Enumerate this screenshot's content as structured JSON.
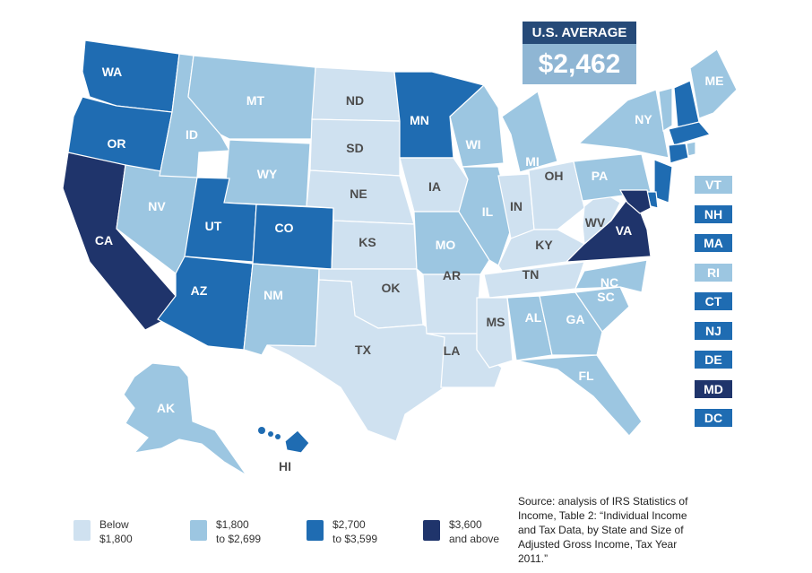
{
  "us_average": {
    "label": "U.S. AVERAGE",
    "value": "$2,462"
  },
  "colors": {
    "below_1800": "#cfe1f0",
    "1800_2699": "#9cc6e1",
    "2700_3599": "#1f6cb2",
    "3600_up": "#1f346b",
    "label_dark": "#4d4d4d",
    "label_light": "#ffffff"
  },
  "legend": [
    {
      "tier": "below_1800",
      "line1": "Below",
      "line2": "$1,800"
    },
    {
      "tier": "1800_2699",
      "line1": "$1,800",
      "line2": "to $2,699"
    },
    {
      "tier": "2700_3599",
      "line1": "$2,700",
      "line2": "to $3,599"
    },
    {
      "tier": "3600_up",
      "line1": "$3,600",
      "line2": "and above"
    }
  ],
  "source": "Source: analysis of IRS Statistics of Income, Table 2: “Individual Income and Tax Data, by State and Size of Adjusted Gross Income, Tax Year 2011.”",
  "side_states": [
    {
      "abbr": "VT",
      "tier": "1800_2699"
    },
    {
      "abbr": "NH",
      "tier": "2700_3599"
    },
    {
      "abbr": "MA",
      "tier": "2700_3599"
    },
    {
      "abbr": "RI",
      "tier": "1800_2699"
    },
    {
      "abbr": "CT",
      "tier": "2700_3599"
    },
    {
      "abbr": "NJ",
      "tier": "2700_3599"
    },
    {
      "abbr": "DE",
      "tier": "2700_3599"
    },
    {
      "abbr": "MD",
      "tier": "3600_up"
    },
    {
      "abbr": "DC",
      "tier": "2700_3599"
    }
  ],
  "states": [
    {
      "abbr": "WA",
      "tier": "2700_3599"
    },
    {
      "abbr": "OR",
      "tier": "2700_3599"
    },
    {
      "abbr": "CA",
      "tier": "3600_up"
    },
    {
      "abbr": "NV",
      "tier": "1800_2699"
    },
    {
      "abbr": "ID",
      "tier": "1800_2699"
    },
    {
      "abbr": "MT",
      "tier": "1800_2699"
    },
    {
      "abbr": "WY",
      "tier": "1800_2699"
    },
    {
      "abbr": "UT",
      "tier": "2700_3599"
    },
    {
      "abbr": "CO",
      "tier": "2700_3599"
    },
    {
      "abbr": "AZ",
      "tier": "2700_3599"
    },
    {
      "abbr": "NM",
      "tier": "1800_2699"
    },
    {
      "abbr": "ND",
      "tier": "below_1800"
    },
    {
      "abbr": "SD",
      "tier": "below_1800"
    },
    {
      "abbr": "NE",
      "tier": "below_1800"
    },
    {
      "abbr": "KS",
      "tier": "below_1800"
    },
    {
      "abbr": "OK",
      "tier": "below_1800"
    },
    {
      "abbr": "TX",
      "tier": "below_1800"
    },
    {
      "abbr": "MN",
      "tier": "2700_3599"
    },
    {
      "abbr": "IA",
      "tier": "below_1800"
    },
    {
      "abbr": "MO",
      "tier": "1800_2699"
    },
    {
      "abbr": "AR",
      "tier": "below_1800"
    },
    {
      "abbr": "LA",
      "tier": "below_1800"
    },
    {
      "abbr": "WI",
      "tier": "1800_2699"
    },
    {
      "abbr": "IL",
      "tier": "1800_2699"
    },
    {
      "abbr": "MI",
      "tier": "1800_2699"
    },
    {
      "abbr": "IN",
      "tier": "below_1800"
    },
    {
      "abbr": "OH",
      "tier": "below_1800"
    },
    {
      "abbr": "KY",
      "tier": "below_1800"
    },
    {
      "abbr": "TN",
      "tier": "below_1800"
    },
    {
      "abbr": "MS",
      "tier": "below_1800"
    },
    {
      "abbr": "AL",
      "tier": "1800_2699"
    },
    {
      "abbr": "GA",
      "tier": "1800_2699"
    },
    {
      "abbr": "FL",
      "tier": "1800_2699"
    },
    {
      "abbr": "SC",
      "tier": "1800_2699"
    },
    {
      "abbr": "NC",
      "tier": "1800_2699"
    },
    {
      "abbr": "VA",
      "tier": "3600_up"
    },
    {
      "abbr": "WV",
      "tier": "below_1800"
    },
    {
      "abbr": "PA",
      "tier": "1800_2699"
    },
    {
      "abbr": "NY",
      "tier": "1800_2699"
    },
    {
      "abbr": "ME",
      "tier": "1800_2699"
    },
    {
      "abbr": "VT",
      "tier": "1800_2699"
    },
    {
      "abbr": "NH",
      "tier": "2700_3599"
    },
    {
      "abbr": "MA",
      "tier": "2700_3599"
    },
    {
      "abbr": "CT",
      "tier": "2700_3599"
    },
    {
      "abbr": "RI",
      "tier": "1800_2699"
    },
    {
      "abbr": "NJ",
      "tier": "2700_3599"
    },
    {
      "abbr": "DE",
      "tier": "2700_3599"
    },
    {
      "abbr": "MD",
      "tier": "3600_up"
    },
    {
      "abbr": "AK",
      "tier": "1800_2699"
    },
    {
      "abbr": "HI",
      "tier": "2700_3599"
    }
  ]
}
